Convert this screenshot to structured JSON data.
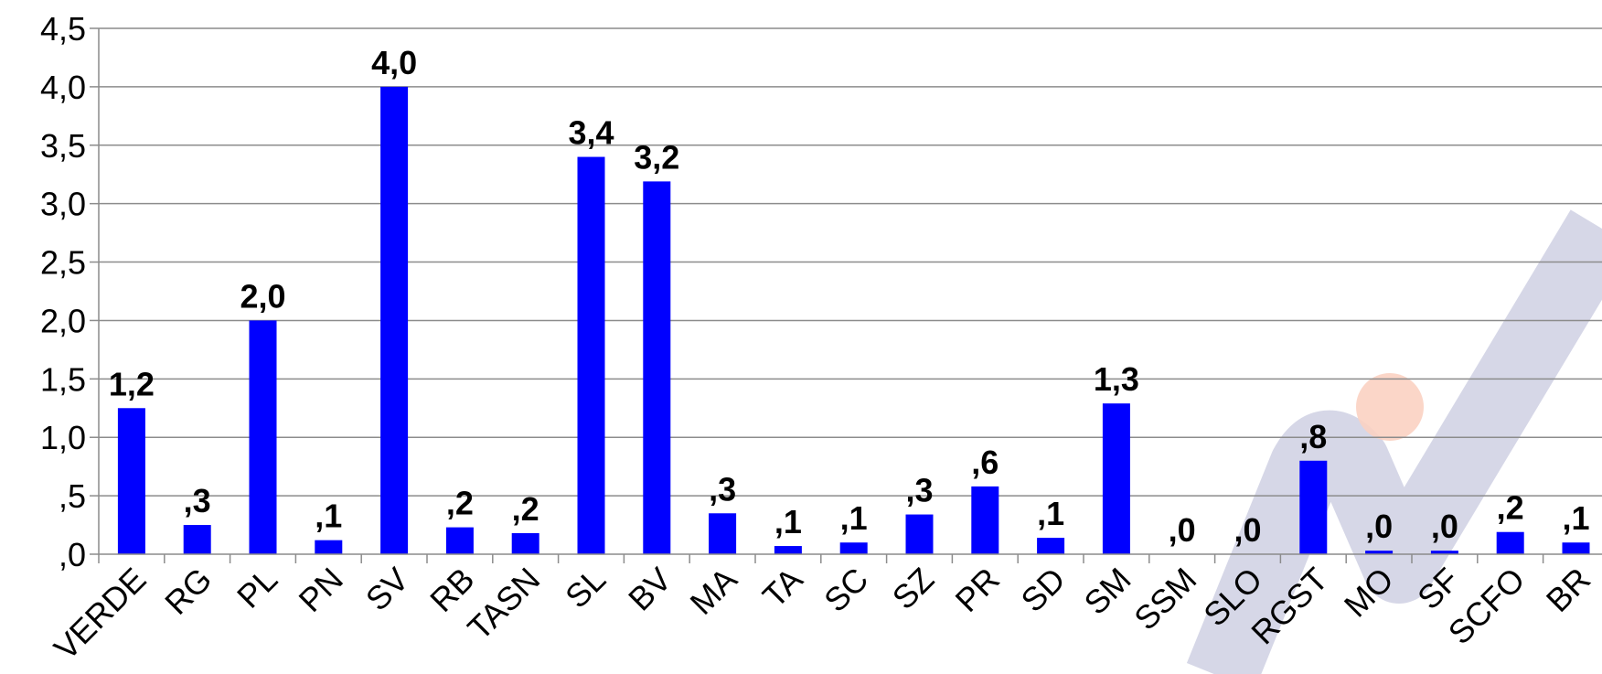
{
  "chart_data": {
    "type": "bar",
    "title": "",
    "xlabel": "",
    "ylabel": "",
    "ylim": [
      0,
      4.5
    ],
    "grid": true,
    "legend": "none",
    "y_ticks": [
      0,
      0.5,
      1.0,
      1.5,
      2.0,
      2.5,
      3.0,
      3.5,
      4.0,
      4.5
    ],
    "y_tick_labels": [
      ",0",
      ",5",
      "1,0",
      "1,5",
      "2,0",
      "2,5",
      "3,0",
      "3,5",
      "4,0",
      "4,5"
    ],
    "categories": [
      "VERDE",
      "RG",
      "PL",
      "PN",
      "SV",
      "RB",
      "TASN",
      "SL",
      "BV",
      "MA",
      "TA",
      "SC",
      "SZ",
      "PR",
      "SD",
      "SM",
      "SSM",
      "SLO",
      "RGST",
      "MO",
      "SF",
      "SCFO",
      "BR"
    ],
    "values": [
      1.25,
      0.25,
      2.0,
      0.12,
      4.0,
      0.23,
      0.18,
      3.4,
      3.19,
      0.35,
      0.07,
      0.1,
      0.34,
      0.58,
      0.14,
      1.29,
      0.0,
      0.0,
      0.8,
      0.03,
      0.03,
      0.19,
      0.1
    ],
    "data_labels": [
      "1,2",
      ",3",
      "2,0",
      ",1",
      "4,0",
      ",2",
      ",2",
      "3,4",
      "3,2",
      ",3",
      ",1",
      ",1",
      ",3",
      ",6",
      ",1",
      "1,3",
      ",0",
      ",0",
      ",8",
      ",0",
      ",0",
      ",2",
      ",1"
    ],
    "bar_color": "#0000ff",
    "grid_color": "#8c8c8c"
  }
}
